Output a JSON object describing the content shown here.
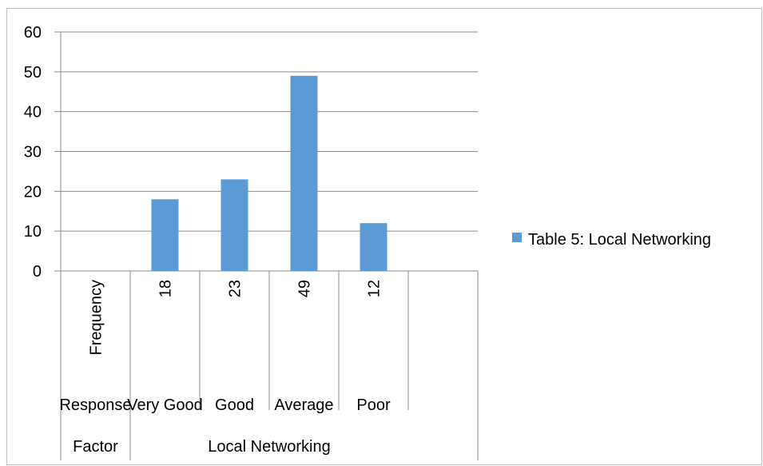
{
  "chart_data": {
    "type": "bar",
    "categories": [
      "Response",
      "Very Good",
      "Good",
      "Average",
      "Poor",
      ""
    ],
    "frequency_labels": [
      "Frequency",
      "18",
      "23",
      "49",
      "12",
      ""
    ],
    "group_labels": [
      "Factor",
      "Local Networking"
    ],
    "series": [
      {
        "name": "Table 5: Local Networking",
        "values": [
          0,
          18,
          23,
          49,
          12,
          0
        ]
      }
    ],
    "ylim": [
      0,
      60
    ],
    "yticks": [
      0,
      10,
      20,
      30,
      40,
      50,
      60
    ],
    "grid": true,
    "legend_position": "right",
    "colors": {
      "bar": "#5b9bd5",
      "grid": "#8c8c8c"
    }
  }
}
